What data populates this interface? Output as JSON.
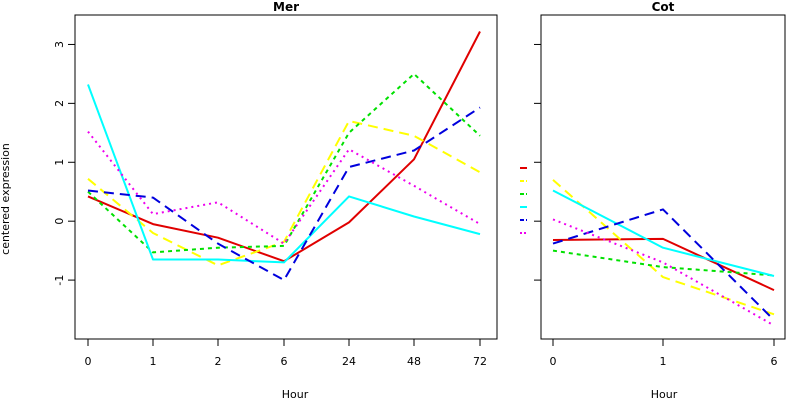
{
  "ylabel": "centered expression",
  "colors": [
    "#e00000",
    "#ffff00",
    "#00e000",
    "#00ffff",
    "#0000dd",
    "#ee00ee"
  ],
  "chart_data": [
    {
      "type": "line",
      "title": "Mer",
      "xlabel": "Hour",
      "ylabel": "centered expression",
      "categories": [
        "0",
        "1",
        "2",
        "6",
        "24",
        "48",
        "72"
      ],
      "ylim": [
        -2.0,
        3.5
      ],
      "yticks": [
        "-1",
        "0",
        "1",
        "2",
        "3"
      ],
      "series": [
        {
          "color": "#e00000",
          "dash": "solid",
          "values": [
            0.42,
            -0.05,
            -0.28,
            -0.68,
            -0.02,
            1.05,
            3.22
          ]
        },
        {
          "color": "#ffff00",
          "dash": "long",
          "values": [
            0.72,
            -0.2,
            -0.75,
            -0.35,
            1.7,
            1.45,
            0.83
          ]
        },
        {
          "color": "#00e000",
          "dash": "short",
          "values": [
            0.5,
            -0.53,
            -0.45,
            -0.42,
            1.5,
            2.5,
            1.45
          ]
        },
        {
          "color": "#00ffff",
          "dash": "solid",
          "values": [
            2.32,
            -0.65,
            -0.65,
            -0.7,
            0.42,
            0.08,
            -0.22
          ]
        },
        {
          "color": "#0000dd",
          "dash": "long",
          "values": [
            0.52,
            0.4,
            -0.38,
            -1.0,
            0.92,
            1.2,
            1.93
          ]
        },
        {
          "color": "#ee00ee",
          "dash": "dot",
          "values": [
            1.52,
            0.12,
            0.32,
            -0.38,
            1.22,
            0.6,
            -0.05
          ]
        }
      ]
    },
    {
      "type": "line",
      "title": "Cot",
      "xlabel": "Hour",
      "categories": [
        "0",
        "1",
        "6"
      ],
      "ylim": [
        -2.0,
        3.5
      ],
      "series": [
        {
          "color": "#e00000",
          "dash": "solid",
          "values": [
            -0.32,
            -0.3,
            -1.17
          ]
        },
        {
          "color": "#ffff00",
          "dash": "long",
          "values": [
            0.7,
            -0.95,
            -1.58
          ]
        },
        {
          "color": "#00e000",
          "dash": "short",
          "values": [
            -0.5,
            -0.78,
            -0.92
          ]
        },
        {
          "color": "#00ffff",
          "dash": "solid",
          "values": [
            0.52,
            -0.45,
            -0.93
          ]
        },
        {
          "color": "#0000dd",
          "dash": "long",
          "values": [
            -0.38,
            0.2,
            -1.68
          ]
        },
        {
          "color": "#ee00ee",
          "dash": "dot",
          "values": [
            0.03,
            -0.7,
            -1.77
          ]
        }
      ]
    }
  ]
}
